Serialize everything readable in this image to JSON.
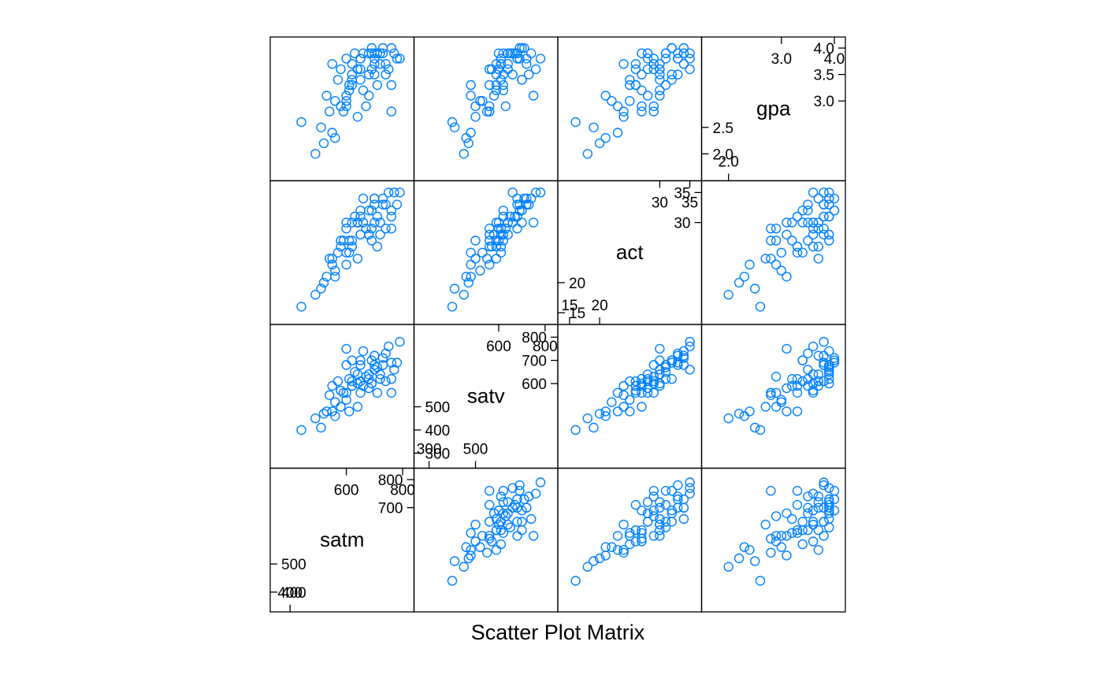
{
  "colors": {
    "point": "#0080ff",
    "frame": "#000000"
  },
  "chart_data": {
    "type": "scatter",
    "subtype": "scatterplot-matrix",
    "title": "Scatter Plot Matrix",
    "variables": [
      {
        "name": "satm",
        "range": [
          350,
          820
        ],
        "ticks_left": [
          400,
          500,
          600
        ],
        "ticks_right": [
          600,
          700,
          800
        ],
        "ticks_bottom": [
          400,
          600
        ],
        "ticks_top": [
          600,
          800
        ]
      },
      {
        "name": "satv",
        "range": [
          260,
          830
        ],
        "ticks_left": [
          300,
          400,
          500
        ],
        "ticks_right": [
          600,
          700,
          800
        ],
        "ticks_bottom": [
          300,
          500
        ],
        "ticks_top": [
          600,
          800
        ]
      },
      {
        "name": "act",
        "range": [
          14,
          36
        ],
        "ticks_left": [
          15,
          20,
          25
        ],
        "ticks_right": [
          25,
          30,
          35
        ],
        "ticks_bottom": [
          15,
          20,
          25
        ],
        "ticks_top": [
          25,
          30,
          35
        ]
      },
      {
        "name": "gpa",
        "range": [
          1.6,
          4.1
        ],
        "ticks_left": [
          2.0,
          2.5,
          3.0
        ],
        "ticks_right": [
          3.0,
          3.5,
          4.0
        ],
        "ticks_bottom": [
          2.0,
          3.0
        ],
        "ticks_top": [
          3.0,
          4.0
        ]
      }
    ],
    "points": [
      [
        760,
        560,
        29,
        2.8
      ],
      [
        700,
        680,
        34,
        3.9
      ],
      [
        650,
        560,
        28,
        3.6
      ],
      [
        720,
        620,
        28,
        3.9
      ],
      [
        600,
        750,
        30,
        3.1
      ],
      [
        780,
        690,
        33,
        3.8
      ],
      [
        550,
        480,
        23,
        2.4
      ],
      [
        620,
        610,
        26,
        3.7
      ],
      [
        690,
        600,
        27,
        3.9
      ],
      [
        610,
        480,
        25,
        3.3
      ],
      [
        540,
        550,
        24,
        2.8
      ],
      [
        730,
        710,
        34,
        4.0
      ],
      [
        640,
        640,
        30,
        3.6
      ],
      [
        580,
        500,
        27,
        2.9
      ],
      [
        770,
        660,
        35,
        3.9
      ],
      [
        680,
        620,
        32,
        3.5
      ],
      [
        520,
        470,
        20,
        2.2
      ],
      [
        650,
        700,
        32,
        3.4
      ],
      [
        600,
        680,
        29,
        3.8
      ],
      [
        740,
        610,
        29,
        3.7
      ],
      [
        490,
        450,
        18,
        2.0
      ],
      [
        710,
        560,
        26,
        3.3
      ],
      [
        660,
        590,
        30,
        3.2
      ],
      [
        620,
        590,
        27,
        3.5
      ],
      [
        700,
        720,
        33,
        3.8
      ],
      [
        560,
        520,
        22,
        3.0
      ],
      [
        750,
        760,
        35,
        3.6
      ],
      [
        630,
        650,
        31,
        3.9
      ],
      [
        680,
        580,
        28,
        3.1
      ],
      [
        570,
        610,
        25,
        3.4
      ],
      [
        720,
        640,
        30,
        3.7
      ],
      [
        600,
        560,
        23,
        2.9
      ],
      [
        650,
        680,
        31,
        3.8
      ],
      [
        690,
        700,
        32,
        4.0
      ],
      [
        510,
        410,
        19,
        2.5
      ],
      [
        760,
        620,
        31,
        3.3
      ],
      [
        580,
        570,
        26,
        3.6
      ],
      [
        640,
        500,
        24,
        2.7
      ],
      [
        700,
        660,
        30,
        3.5
      ],
      [
        660,
        740,
        34,
        3.9
      ],
      [
        440,
        400,
        16,
        2.6
      ],
      [
        610,
        620,
        27,
        3.2
      ],
      [
        730,
        680,
        33,
        3.9
      ],
      [
        550,
        590,
        24,
        3.7
      ],
      [
        670,
        630,
        29,
        2.9
      ],
      [
        790,
        780,
        35,
        3.8
      ],
      [
        600,
        530,
        25,
        3.0
      ],
      [
        690,
        600,
        29,
        3.6
      ],
      [
        620,
        700,
        30,
        3.4
      ],
      [
        710,
        670,
        31,
        3.9
      ],
      [
        530,
        480,
        21,
        3.1
      ],
      [
        650,
        610,
        28,
        3.8
      ],
      [
        740,
        730,
        33,
        3.5
      ],
      [
        590,
        560,
        27,
        2.8
      ],
      [
        680,
        640,
        28,
        3.9
      ],
      [
        620,
        590,
        26,
        3.3
      ],
      [
        700,
        720,
        34,
        3.7
      ],
      [
        560,
        460,
        21,
        2.3
      ],
      [
        760,
        690,
        32,
        4.0
      ],
      [
        640,
        600,
        30,
        3.6
      ]
    ]
  }
}
